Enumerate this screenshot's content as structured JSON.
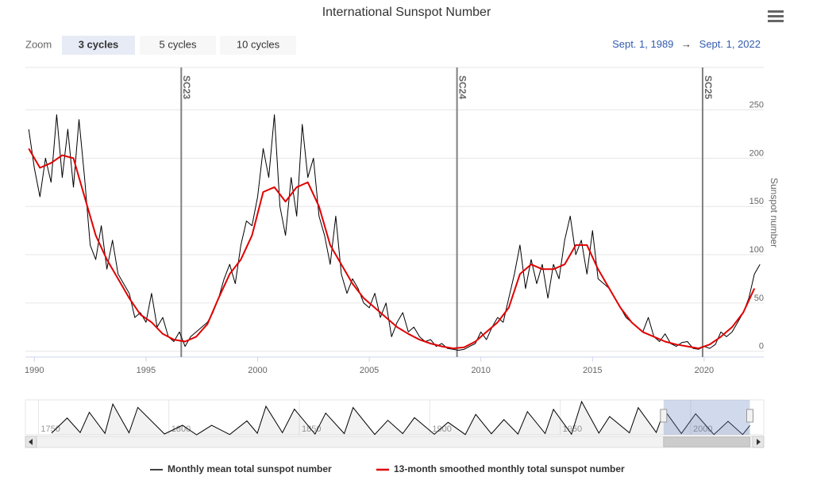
{
  "chart_data": {
    "type": "line",
    "title": "International Sunspot Number",
    "zoom": {
      "label": "Zoom",
      "buttons": [
        "3 cycles",
        "5 cycles",
        "10 cycles"
      ],
      "selected": 0
    },
    "range": {
      "from": "Sept. 1, 1989",
      "arrow": "→",
      "to": "Sept. 1, 2022"
    },
    "y_axis_label": "Sunspot number",
    "xlim": [
      1989.6,
      2022.67
    ],
    "xticks": [
      1990,
      1995,
      2000,
      2005,
      2010,
      2015,
      2020
    ],
    "ylim": [
      -6,
      294
    ],
    "yticks": [
      0,
      50,
      100,
      150,
      200,
      250
    ],
    "grid": true,
    "plot_lines": [
      {
        "value": 1996.58,
        "label": "SC23"
      },
      {
        "value": 2008.93,
        "label": "SC24"
      },
      {
        "value": 2019.93,
        "label": "SC25"
      }
    ],
    "series": [
      {
        "name": "Monthly mean total sunspot number",
        "color": "#000000",
        "x": [
          1989.75,
          1990,
          1990.25,
          1990.5,
          1990.75,
          1991,
          1991.25,
          1991.5,
          1991.75,
          1992,
          1992.25,
          1992.5,
          1992.75,
          1993,
          1993.25,
          1993.5,
          1993.75,
          1994,
          1994.25,
          1994.5,
          1994.75,
          1995,
          1995.25,
          1995.5,
          1995.75,
          1996,
          1996.25,
          1996.5,
          1996.75,
          1997,
          1997.25,
          1997.5,
          1997.75,
          1998,
          1998.25,
          1998.5,
          1998.75,
          1999,
          1999.25,
          1999.5,
          1999.75,
          2000,
          2000.25,
          2000.5,
          2000.75,
          2001,
          2001.25,
          2001.5,
          2001.75,
          2002,
          2002.25,
          2002.5,
          2002.75,
          2003,
          2003.25,
          2003.5,
          2003.75,
          2004,
          2004.25,
          2004.5,
          2004.75,
          2005,
          2005.25,
          2005.5,
          2005.75,
          2006,
          2006.25,
          2006.5,
          2006.75,
          2007,
          2007.25,
          2007.5,
          2007.75,
          2008,
          2008.25,
          2008.5,
          2008.75,
          2009,
          2009.25,
          2009.5,
          2009.75,
          2010,
          2010.25,
          2010.5,
          2010.75,
          2011,
          2011.25,
          2011.5,
          2011.75,
          2012,
          2012.25,
          2012.5,
          2012.75,
          2013,
          2013.25,
          2013.5,
          2013.75,
          2014,
          2014.25,
          2014.5,
          2014.75,
          2015,
          2015.25,
          2015.5,
          2015.75,
          2016,
          2016.25,
          2016.5,
          2016.75,
          2017,
          2017.25,
          2017.5,
          2017.75,
          2018,
          2018.25,
          2018.5,
          2018.75,
          2019,
          2019.25,
          2019.5,
          2019.75,
          2020,
          2020.25,
          2020.5,
          2020.75,
          2021,
          2021.25,
          2021.5,
          2021.75,
          2022,
          2022.25,
          2022.5
        ],
        "values": [
          230,
          190,
          160,
          200,
          175,
          245,
          180,
          230,
          170,
          240,
          180,
          110,
          95,
          130,
          85,
          115,
          80,
          70,
          60,
          35,
          40,
          30,
          60,
          25,
          35,
          15,
          10,
          20,
          5,
          15,
          20,
          25,
          30,
          40,
          55,
          75,
          90,
          70,
          110,
          135,
          130,
          160,
          210,
          180,
          245,
          150,
          120,
          180,
          140,
          235,
          180,
          200,
          140,
          120,
          90,
          140,
          80,
          60,
          75,
          65,
          50,
          45,
          60,
          35,
          50,
          15,
          30,
          40,
          20,
          25,
          15,
          10,
          12,
          5,
          8,
          3,
          2,
          1,
          2,
          5,
          8,
          20,
          12,
          25,
          35,
          30,
          55,
          80,
          110,
          65,
          95,
          70,
          90,
          55,
          90,
          75,
          115,
          140,
          100,
          115,
          80,
          125,
          75,
          70,
          65,
          55,
          45,
          35,
          30,
          25,
          20,
          35,
          15,
          10,
          18,
          8,
          5,
          9,
          10,
          3,
          2,
          5,
          3,
          7,
          20,
          15,
          20,
          30,
          40,
          55,
          80,
          90
        ]
      },
      {
        "name": "13-month smoothed monthly total sunspot number",
        "color": "#e00000",
        "x": [
          1989.75,
          1990.25,
          1990.75,
          1991.25,
          1991.75,
          1992.25,
          1992.75,
          1993.25,
          1993.75,
          1994.25,
          1994.75,
          1995.25,
          1995.75,
          1996.25,
          1996.75,
          1997.25,
          1997.75,
          1998.25,
          1998.75,
          1999.25,
          1999.75,
          2000.25,
          2000.75,
          2001.25,
          2001.75,
          2002.25,
          2002.75,
          2003.25,
          2003.75,
          2004.25,
          2004.75,
          2005.25,
          2005.75,
          2006.25,
          2006.75,
          2007.25,
          2007.75,
          2008.25,
          2008.75,
          2009.25,
          2009.75,
          2010.25,
          2010.75,
          2011.25,
          2011.75,
          2012.25,
          2012.75,
          2013.25,
          2013.75,
          2014.25,
          2014.75,
          2015.25,
          2015.75,
          2016.25,
          2016.75,
          2017.25,
          2017.75,
          2018.25,
          2018.75,
          2019.25,
          2019.75,
          2020.25,
          2020.75,
          2021.25,
          2021.75,
          2022.25
        ],
        "values": [
          210,
          190,
          195,
          203,
          200,
          160,
          120,
          95,
          75,
          55,
          38,
          30,
          18,
          12,
          10,
          15,
          28,
          55,
          80,
          95,
          120,
          165,
          170,
          155,
          170,
          175,
          150,
          110,
          90,
          70,
          55,
          45,
          35,
          25,
          18,
          12,
          8,
          5,
          3,
          4,
          10,
          20,
          30,
          45,
          80,
          90,
          85,
          85,
          90,
          110,
          110,
          85,
          65,
          45,
          30,
          20,
          15,
          10,
          7,
          5,
          3,
          7,
          15,
          25,
          40,
          65
        ]
      }
    ],
    "navigator": {
      "xlim": [
        1745,
        2028
      ],
      "ylim": [
        0,
        300
      ],
      "xticks": [
        1750,
        1800,
        1850,
        1900,
        1950,
        2000
      ],
      "x": [
        1755,
        1761,
        1766,
        1769.5,
        1775.5,
        1778.5,
        1784.7,
        1788.1,
        1798.3,
        1805.2,
        1810.6,
        1816.4,
        1823.3,
        1829.9,
        1833.9,
        1837.2,
        1843.5,
        1848.1,
        1856,
        1860.1,
        1867.2,
        1870.6,
        1878.9,
        1883.9,
        1889.6,
        1894.1,
        1901.7,
        1907,
        1913.6,
        1917.6,
        1923.6,
        1928.4,
        1933.8,
        1937.4,
        1944.2,
        1947.4,
        1954.3,
        1958.2,
        1964.8,
        1968.9,
        1976.5,
        1979.9,
        1986.8,
        1989.9,
        1996.4,
        2001.9,
        2008.9,
        2014.3,
        2019.9,
        2022.67
      ],
      "values": [
        14,
        144,
        19,
        193,
        12,
        264,
        17,
        235,
        7,
        82,
        0,
        81,
        2,
        119,
        13,
        245,
        18,
        220,
        6,
        186,
        10,
        234,
        3,
        124,
        10,
        147,
        4,
        107,
        2,
        175,
        9,
        130,
        6,
        199,
        11,
        219,
        5,
        285,
        14,
        157,
        17,
        233,
        20,
        213,
        11,
        181,
        2,
        116,
        2,
        80
      ]
    }
  }
}
